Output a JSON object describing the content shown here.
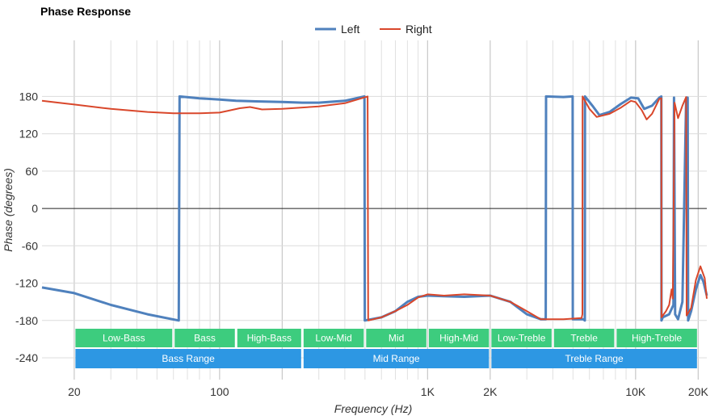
{
  "chart_data": {
    "type": "line",
    "title": "Phase Response",
    "xlabel": "Frequency (Hz)",
    "ylabel": "Phase (degrees)",
    "x_scale": "log",
    "xlim": [
      14,
      22000
    ],
    "ylim": [
      -275,
      270
    ],
    "x_tick_labels": [
      {
        "value": 20,
        "label": "20"
      },
      {
        "value": 100,
        "label": "100"
      },
      {
        "value": 1000,
        "label": "1K"
      },
      {
        "value": 2000,
        "label": "2K"
      },
      {
        "value": 10000,
        "label": "10K"
      },
      {
        "value": 20000,
        "label": "20K"
      }
    ],
    "y_ticks": [
      180,
      120,
      60,
      0,
      -60,
      -120,
      -180,
      -240
    ],
    "y_tick_labels": [
      "180",
      "120",
      "60",
      "0",
      "-60",
      "-120",
      "-180",
      "-240"
    ],
    "grid": true,
    "legend_position": "top-center",
    "series": [
      {
        "name": "Left",
        "color": "#4f81bd",
        "points": [
          [
            14,
            -127
          ],
          [
            20,
            -136
          ],
          [
            30,
            -155
          ],
          [
            45,
            -170
          ],
          [
            63.6,
            -180
          ],
          [
            64.2,
            180
          ],
          [
            80,
            177
          ],
          [
            100,
            175
          ],
          [
            120,
            173
          ],
          [
            150,
            172
          ],
          [
            200,
            171
          ],
          [
            250,
            170
          ],
          [
            300,
            170
          ],
          [
            400,
            173
          ],
          [
            497,
            180
          ],
          [
            499,
            -180
          ],
          [
            600,
            -175
          ],
          [
            700,
            -165
          ],
          [
            800,
            -150
          ],
          [
            900,
            -142
          ],
          [
            1000,
            -140
          ],
          [
            1200,
            -141
          ],
          [
            1500,
            -142
          ],
          [
            2000,
            -140
          ],
          [
            2500,
            -150
          ],
          [
            3000,
            -170
          ],
          [
            3500,
            -178
          ],
          [
            3700,
            -178
          ],
          [
            3710,
            180
          ],
          [
            4500,
            179
          ],
          [
            4980,
            180
          ],
          [
            4990,
            -178
          ],
          [
            5600,
            -178
          ],
          [
            5700,
            -180
          ],
          [
            5710,
            180
          ],
          [
            6200,
            165
          ],
          [
            6700,
            150
          ],
          [
            7500,
            155
          ],
          [
            8500,
            168
          ],
          [
            9500,
            178
          ],
          [
            10300,
            177
          ],
          [
            11000,
            160
          ],
          [
            12000,
            165
          ],
          [
            13000,
            178
          ],
          [
            13300,
            180
          ],
          [
            13320,
            -180
          ],
          [
            13500,
            -175
          ],
          [
            14500,
            -170
          ],
          [
            15200,
            -155
          ],
          [
            15300,
            178
          ],
          [
            15500,
            -170
          ],
          [
            16000,
            -178
          ],
          [
            16800,
            -150
          ],
          [
            17500,
            175
          ],
          [
            17800,
            178
          ],
          [
            17900,
            -180
          ],
          [
            18500,
            -165
          ],
          [
            19500,
            -130
          ],
          [
            20500,
            -107
          ],
          [
            21200,
            -118
          ],
          [
            22000,
            -140
          ]
        ]
      },
      {
        "name": "Right",
        "color": "#d9472b",
        "points": [
          [
            14,
            173
          ],
          [
            20,
            167
          ],
          [
            30,
            160
          ],
          [
            45,
            155
          ],
          [
            60,
            153
          ],
          [
            80,
            153
          ],
          [
            100,
            154
          ],
          [
            110,
            157
          ],
          [
            125,
            161
          ],
          [
            140,
            163
          ],
          [
            160,
            159
          ],
          [
            200,
            160
          ],
          [
            300,
            164
          ],
          [
            400,
            169
          ],
          [
            515,
            180
          ],
          [
            518,
            -180
          ],
          [
            600,
            -175
          ],
          [
            700,
            -165
          ],
          [
            800,
            -155
          ],
          [
            900,
            -143
          ],
          [
            1000,
            -138
          ],
          [
            1200,
            -140
          ],
          [
            1500,
            -138
          ],
          [
            2000,
            -140
          ],
          [
            2500,
            -150
          ],
          [
            3000,
            -165
          ],
          [
            3500,
            -178
          ],
          [
            4500,
            -178
          ],
          [
            5500,
            -176
          ],
          [
            5550,
            -170
          ],
          [
            5560,
            180
          ],
          [
            6000,
            160
          ],
          [
            6500,
            147
          ],
          [
            7500,
            152
          ],
          [
            8500,
            162
          ],
          [
            9500,
            173
          ],
          [
            10000,
            171
          ],
          [
            10700,
            158
          ],
          [
            11300,
            143
          ],
          [
            12000,
            152
          ],
          [
            13000,
            176
          ],
          [
            13300,
            177
          ],
          [
            13320,
            -175
          ],
          [
            14000,
            -165
          ],
          [
            14500,
            -155
          ],
          [
            14900,
            -130
          ],
          [
            15100,
            -145
          ],
          [
            15400,
            170
          ],
          [
            16000,
            145
          ],
          [
            16800,
            165
          ],
          [
            17500,
            179
          ],
          [
            17600,
            -172
          ],
          [
            18500,
            -160
          ],
          [
            19500,
            -115
          ],
          [
            20500,
            -93
          ],
          [
            21500,
            -112
          ],
          [
            22000,
            -145
          ]
        ]
      }
    ],
    "bands": [
      {
        "label": "Low-Bass",
        "from": 20,
        "to": 60,
        "color": "#3dcc7e"
      },
      {
        "label": "Bass",
        "from": 60,
        "to": 120,
        "color": "#3dcc7e"
      },
      {
        "label": "High-Bass",
        "from": 120,
        "to": 250,
        "color": "#3dcc7e"
      },
      {
        "label": "Low-Mid",
        "from": 250,
        "to": 500,
        "color": "#3dcc7e"
      },
      {
        "label": "Mid",
        "from": 500,
        "to": 1000,
        "color": "#3dcc7e"
      },
      {
        "label": "High-Mid",
        "from": 1000,
        "to": 2000,
        "color": "#3dcc7e"
      },
      {
        "label": "Low-Treble",
        "from": 2000,
        "to": 4000,
        "color": "#3dcc7e"
      },
      {
        "label": "Treble",
        "from": 4000,
        "to": 8000,
        "color": "#3dcc7e"
      },
      {
        "label": "High-Treble",
        "from": 8000,
        "to": 20000,
        "color": "#3dcc7e"
      }
    ],
    "ranges": [
      {
        "label": "Bass Range",
        "from": 20,
        "to": 250,
        "color": "#2d97e3"
      },
      {
        "label": "Mid Range",
        "from": 250,
        "to": 2000,
        "color": "#2d97e3"
      },
      {
        "label": "Treble Range",
        "from": 2000,
        "to": 20000,
        "color": "#2d97e3"
      }
    ]
  }
}
